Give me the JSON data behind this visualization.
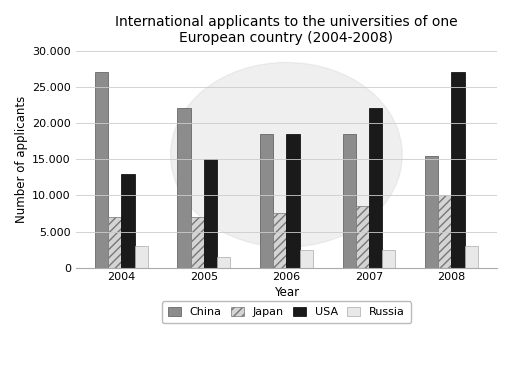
{
  "title": "International applicants to the universities of one\nEuropean country (2004-2008)",
  "xlabel": "Year",
  "ylabel": "Number of applicants",
  "years": [
    2004,
    2005,
    2006,
    2007,
    2008
  ],
  "series": {
    "China": [
      27000,
      22000,
      18500,
      18500,
      15500
    ],
    "Japan": [
      7000,
      7000,
      7500,
      8500,
      10000
    ],
    "USA": [
      13000,
      15000,
      18500,
      22000,
      27000
    ],
    "Russia": [
      3000,
      1500,
      2500,
      2500,
      3000
    ]
  },
  "colors": {
    "China": "#8c8c8c",
    "Japan": "#d4d4d4",
    "USA": "#1a1a1a",
    "Russia": "#e8e8e8"
  },
  "hatches": {
    "China": "",
    "Japan": "////",
    "USA": "",
    "Russia": ""
  },
  "edgecolors": {
    "China": "#555555",
    "Japan": "#777777",
    "USA": "#000000",
    "Russia": "#aaaaaa"
  },
  "ylim": [
    0,
    30000
  ],
  "yticks": [
    0,
    5000,
    10000,
    15000,
    20000,
    25000,
    30000
  ],
  "ytick_labels": [
    "0",
    "5.000",
    "10.000",
    "15.000",
    "20.000",
    "25.000",
    "30.000"
  ],
  "background_color": "#ffffff",
  "grid_color": "#cccccc",
  "title_fontsize": 10,
  "axis_fontsize": 8.5,
  "tick_fontsize": 8,
  "legend_fontsize": 8
}
